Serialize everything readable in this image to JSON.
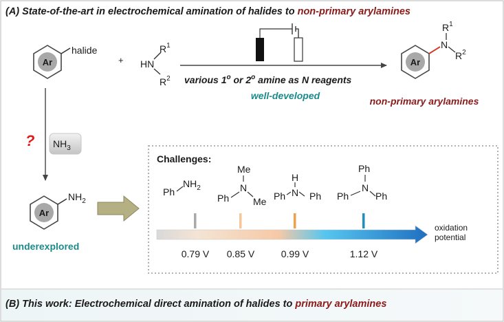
{
  "panel_a": {
    "title_prefix": "(A) State-of-the-art in electrochemical amination of halides to ",
    "title_highlight": "non-primary arylamines",
    "substrate": {
      "ring_label": "Ar",
      "substituent": "halide"
    },
    "plus": "+",
    "amine": {
      "hn": "HN",
      "r1": "R",
      "r1_sup": "1",
      "r2": "R",
      "r2_sup": "2"
    },
    "arrow_text_1": "various 1",
    "arrow_sup_1": "o",
    "arrow_text_2": " or 2",
    "arrow_sup_2": "o",
    "arrow_text_3": " amine as N reagents",
    "status": "well-developed",
    "product": {
      "ring_label": "Ar",
      "n": "N",
      "r1": "R",
      "r1_sup": "1",
      "r2": "R",
      "r2_sup": "2",
      "caption": "non-primary arylamines"
    },
    "question_mark": "?",
    "reagent": "NH",
    "reagent_sub": "3",
    "primary": {
      "ring_label": "Ar",
      "group": "NH",
      "group_sub": "2",
      "caption": "underexplored"
    }
  },
  "challenges": {
    "title": "Challenges:",
    "amines": [
      {
        "ph_left": "Ph",
        "center": "NH",
        "center_sub": "2",
        "top": "",
        "right": "",
        "potential": "0.79 V",
        "tick_color": "#a9a9a9"
      },
      {
        "ph_left": "Ph",
        "center": "N",
        "center_sub": "",
        "top": "Me",
        "right": "Me",
        "potential": "0.85 V",
        "tick_color": "#f7c59a"
      },
      {
        "ph_left": "Ph",
        "center": "N",
        "center_sub": "",
        "top": "H",
        "right": "Ph",
        "potential": "0.99 V",
        "tick_color": "#f0a04a"
      },
      {
        "ph_left": "Ph",
        "center": "N",
        "center_sub": "",
        "top": "Ph",
        "right": "Ph",
        "potential": "1.12 V",
        "tick_color": "#1f8fbf"
      }
    ],
    "axis_label_1": "oxidation",
    "axis_label_2": "potential"
  },
  "panel_b": {
    "title_prefix": "(B) This work: Electrochemical direct amination of halides to ",
    "title_highlight": "primary arylamines"
  },
  "colors": {
    "dark_red": "#8b1a1a",
    "teal": "#1c8a8a",
    "question_red": "#e01b1b",
    "arrow_olive": "#b5b083"
  }
}
